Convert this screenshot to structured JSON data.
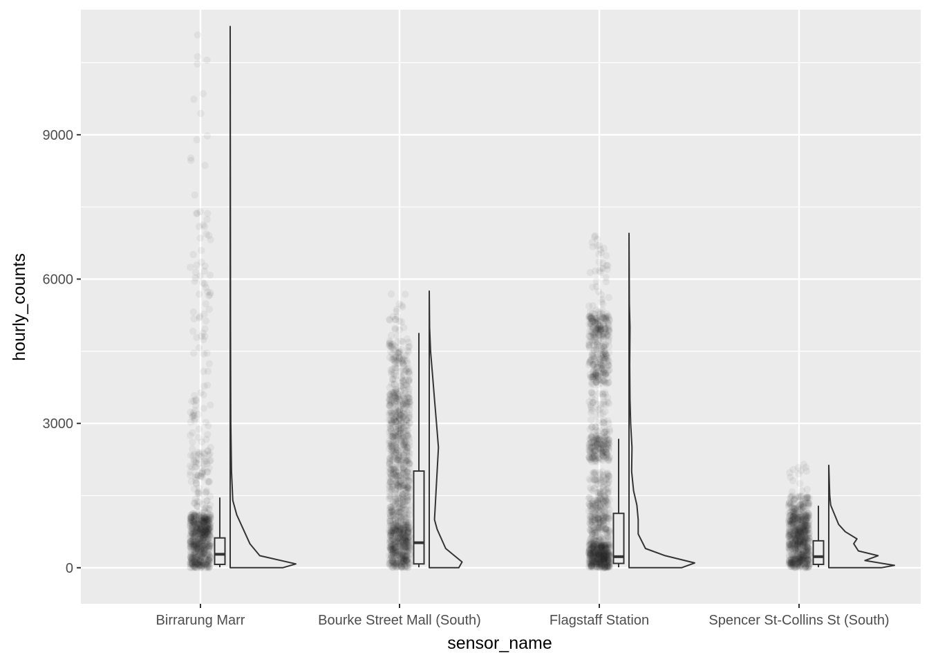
{
  "colors": {
    "panel": "#ebebeb",
    "grid_major": "#ffffff",
    "tick": "#333333",
    "points": "#1a1a1a",
    "lines": "#333333"
  },
  "chart_data": {
    "type": "raincloud",
    "xlabel": "sensor_name",
    "ylabel": "hourly_counts",
    "ylim": [
      -750,
      11600
    ],
    "yticks": [
      0,
      3000,
      6000,
      9000
    ],
    "ytick_labels": [
      "0",
      "3000",
      "6000",
      "9000"
    ],
    "grid": true,
    "categories": [
      "Birrarung Marr",
      "Bourke Street Mall (South)",
      "Flagstaff Station",
      "Spencer St-Collins St (South)"
    ],
    "boxplots": [
      {
        "name": "Birrarung Marr",
        "whisker_low": 10,
        "q1": 70,
        "median": 280,
        "q3": 620,
        "whisker_high": 1460
      },
      {
        "name": "Bourke Street Mall (South)",
        "whisker_low": 10,
        "q1": 80,
        "median": 520,
        "q3": 2010,
        "whisker_high": 4880
      },
      {
        "name": "Flagstaff Station",
        "whisker_low": 10,
        "q1": 90,
        "median": 230,
        "q3": 1130,
        "whisker_high": 2680
      },
      {
        "name": "Spencer St-Collins St (South)",
        "whisker_low": 10,
        "q1": 70,
        "median": 230,
        "q3": 560,
        "whisker_high": 1290
      }
    ],
    "densities": [
      {
        "name": "Birrarung Marr",
        "max": 11250,
        "profile": [
          [
            0,
            0.8
          ],
          [
            80,
            1.0
          ],
          [
            250,
            0.45
          ],
          [
            500,
            0.3
          ],
          [
            800,
            0.2
          ],
          [
            1100,
            0.1
          ],
          [
            1400,
            0.04
          ],
          [
            2000,
            0.02
          ],
          [
            3000,
            0.01
          ],
          [
            5000,
            0.005
          ],
          [
            8000,
            0.003
          ],
          [
            11250,
            0.0
          ]
        ]
      },
      {
        "name": "Bourke Street Mall (South)",
        "max": 5750,
        "profile": [
          [
            0,
            0.45
          ],
          [
            120,
            0.5
          ],
          [
            400,
            0.25
          ],
          [
            800,
            0.12
          ],
          [
            1000,
            0.08
          ],
          [
            1500,
            0.1
          ],
          [
            2000,
            0.12
          ],
          [
            2500,
            0.14
          ],
          [
            3000,
            0.11
          ],
          [
            3500,
            0.08
          ],
          [
            4000,
            0.05
          ],
          [
            4500,
            0.02
          ],
          [
            5000,
            0.005
          ],
          [
            5750,
            0.0
          ]
        ]
      },
      {
        "name": "Flagstaff Station",
        "max": 6950,
        "profile": [
          [
            0,
            0.8
          ],
          [
            100,
            1.0
          ],
          [
            250,
            0.55
          ],
          [
            400,
            0.25
          ],
          [
            700,
            0.14
          ],
          [
            1000,
            0.14
          ],
          [
            1300,
            0.12
          ],
          [
            1600,
            0.07
          ],
          [
            2000,
            0.04
          ],
          [
            2500,
            0.045
          ],
          [
            3000,
            0.025
          ],
          [
            3500,
            0.015
          ],
          [
            4200,
            0.01
          ],
          [
            5000,
            0.015
          ],
          [
            5500,
            0.005
          ],
          [
            6950,
            0.0
          ]
        ]
      },
      {
        "name": "Spencer St-Collins St (South)",
        "max": 2130,
        "profile": [
          [
            0,
            0.8
          ],
          [
            50,
            1.0
          ],
          [
            150,
            0.55
          ],
          [
            250,
            0.75
          ],
          [
            350,
            0.45
          ],
          [
            500,
            0.38
          ],
          [
            600,
            0.43
          ],
          [
            750,
            0.25
          ],
          [
            900,
            0.15
          ],
          [
            1100,
            0.09
          ],
          [
            1300,
            0.03
          ],
          [
            1500,
            0.015
          ],
          [
            2130,
            0.0
          ]
        ]
      }
    ],
    "points": [
      {
        "name": "Birrarung Marr",
        "max": 11300,
        "clusters": [
          [
            0,
            1100,
            600
          ],
          [
            1100,
            2500,
            90
          ],
          [
            2500,
            5800,
            60
          ],
          [
            5800,
            7400,
            26
          ],
          [
            7400,
            11300,
            14
          ]
        ]
      },
      {
        "name": "Bourke Street Mall (South)",
        "max": 5800,
        "clusters": [
          [
            0,
            900,
            420
          ],
          [
            900,
            3700,
            600
          ],
          [
            3700,
            4700,
            110
          ],
          [
            4700,
            5800,
            24
          ]
        ]
      },
      {
        "name": "Flagstaff Station",
        "max": 6950,
        "clusters": [
          [
            0,
            500,
            420
          ],
          [
            500,
            1500,
            220
          ],
          [
            1500,
            2000,
            60
          ],
          [
            2200,
            2750,
            160
          ],
          [
            2750,
            3700,
            60
          ],
          [
            3800,
            4500,
            140
          ],
          [
            4500,
            4800,
            40
          ],
          [
            4800,
            5300,
            140
          ],
          [
            5300,
            6950,
            40
          ]
        ]
      },
      {
        "name": "Spencer St-Collins St (South)",
        "max": 2150,
        "clusters": [
          [
            0,
            1100,
            600
          ],
          [
            1100,
            1500,
            90
          ],
          [
            1500,
            2150,
            14
          ]
        ]
      }
    ]
  }
}
